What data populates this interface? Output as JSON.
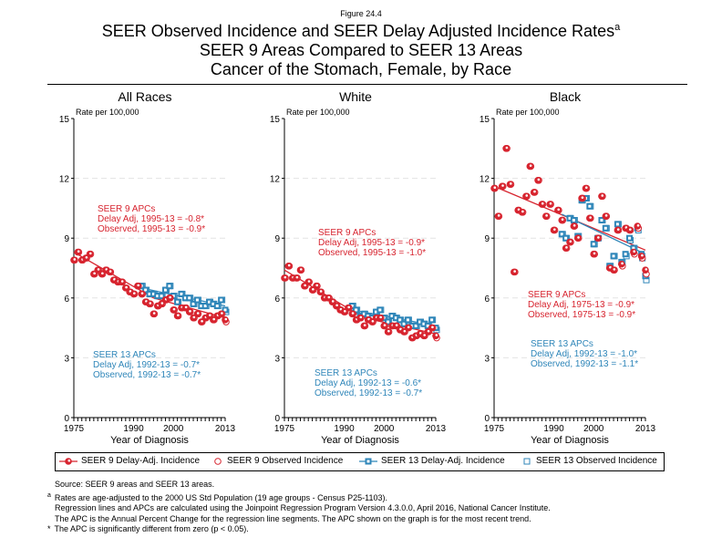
{
  "figure_label": "Figure 24.4",
  "title_line1": "SEER Observed Incidence and SEER Delay Adjusted Incidence Rates",
  "title_sup": "a",
  "title_line2": "SEER 9 Areas Compared to SEER 13 Areas",
  "title_line3": "Cancer of the Stomach, Female, by Race",
  "colors": {
    "seer9": "#d7242f",
    "seer13": "#2f86b9",
    "seer13_obs_line": "#7fb3d6"
  },
  "legend": [
    "SEER 9 Delay-Adj. Incidence",
    "SEER 9 Observed Incidence",
    "SEER 13 Delay-Adj. Incidence",
    "SEER 13 Observed Incidence"
  ],
  "notes": [
    "Source: SEER 9 areas and SEER 13 areas.",
    "Rates are age-adjusted to the 2000 US Std Population (19 age groups - Census P25-1103).",
    "Regression lines and APCs are calculated using the Joinpoint Regression Program Version 4.3.0.0, April 2016, National Cancer Institute.",
    "The APC is the Annual Percent Change for the regression line segments. The APC shown on the graph is for the most recent trend.",
    "The APC is significantly different from zero (p < 0.05)."
  ],
  "note_marks": {
    "a": "a",
    "star": "*"
  },
  "chart_data": [
    {
      "type": "scatter",
      "title": "All Races",
      "ylabel": "Rate per 100,000",
      "xlabel": "Year of Diagnosis",
      "xlim": [
        1975,
        2013
      ],
      "ylim": [
        0,
        15
      ],
      "yticks": [
        0,
        3,
        6,
        9,
        12,
        15
      ],
      "xticks": [
        1975,
        1990,
        2000,
        2013
      ],
      "grid": true,
      "seer9_apc": [
        "SEER 9 APCs",
        "Delay Adj, 1995-13 = -0.8*",
        "Observed, 1995-13 = -0.9*"
      ],
      "seer13_apc": [
        "SEER 13 APCs",
        "Delay Adj, 1992-13 = -0.7*",
        "Observed, 1992-13 = -0.7*"
      ],
      "seer9_delay": [
        7.9,
        8.3,
        7.9,
        8.0,
        8.2,
        7.2,
        7.4,
        7.2,
        7.4,
        7.3,
        6.9,
        6.8,
        6.8,
        6.5,
        6.3,
        6.2,
        6.6,
        6.2,
        5.8,
        5.7,
        5.2,
        5.6,
        5.7,
        5.9,
        6.0,
        5.4,
        5.1,
        5.5,
        5.5,
        5.3,
        5.0,
        5.2,
        4.8,
        5.0,
        5.1,
        4.9,
        5.1,
        5.2,
        4.9
      ],
      "seer9_obs": [
        7.9,
        8.3,
        7.9,
        8.0,
        8.2,
        7.2,
        7.4,
        7.2,
        7.4,
        7.3,
        6.9,
        6.8,
        6.8,
        6.5,
        6.3,
        6.2,
        6.6,
        6.2,
        5.8,
        5.7,
        5.2,
        5.6,
        5.7,
        5.9,
        6.0,
        5.4,
        5.1,
        5.5,
        5.5,
        5.3,
        5.0,
        5.2,
        4.8,
        5.0,
        5.1,
        4.9,
        5.1,
        5.2,
        4.8
      ],
      "seer13_delay": [
        6.6,
        6.4,
        6.2,
        6.2,
        6.1,
        6.1,
        6.4,
        6.6,
        6.1,
        5.8,
        6.2,
        6.0,
        6.0,
        5.7,
        5.9,
        5.6,
        5.6,
        5.8,
        5.7,
        5.6,
        5.9,
        5.4
      ],
      "seer13_obs": [
        6.6,
        6.4,
        6.2,
        6.2,
        6.1,
        6.1,
        6.4,
        6.6,
        6.1,
        5.8,
        6.2,
        6.0,
        6.0,
        5.7,
        5.9,
        5.6,
        5.6,
        5.8,
        5.7,
        5.6,
        5.9,
        5.3
      ],
      "seer9_line": [
        [
          1975,
          8.3
        ],
        [
          1995,
          6.0
        ],
        [
          2013,
          5.0
        ]
      ],
      "seer13_line": [
        [
          1992,
          6.5
        ],
        [
          2013,
          5.6
        ]
      ]
    },
    {
      "type": "scatter",
      "title": "White",
      "ylabel": "Rate per 100,000",
      "xlabel": "Year of Diagnosis",
      "xlim": [
        1975,
        2013
      ],
      "ylim": [
        0,
        15
      ],
      "yticks": [
        0,
        3,
        6,
        9,
        12,
        15
      ],
      "xticks": [
        1975,
        1990,
        2000,
        2013
      ],
      "grid": true,
      "seer9_apc": [
        "SEER 9 APCs",
        "Delay Adj, 1995-13 = -0.9*",
        "Observed, 1995-13 = -1.0*"
      ],
      "seer13_apc": [
        "SEER 13 APCs",
        "Delay Adj, 1992-13 = -0.6*",
        "Observed, 1992-13 = -0.7*"
      ],
      "seer9_delay": [
        7.0,
        7.6,
        7.0,
        7.0,
        7.4,
        6.6,
        6.8,
        6.4,
        6.6,
        6.3,
        6.0,
        6.0,
        5.8,
        5.6,
        5.4,
        5.3,
        5.5,
        5.2,
        4.9,
        5.0,
        4.6,
        4.9,
        4.8,
        5.0,
        5.0,
        4.6,
        4.3,
        4.6,
        4.6,
        4.4,
        4.3,
        4.5,
        4.0,
        4.1,
        4.2,
        4.1,
        4.3,
        4.5,
        4.1
      ],
      "seer9_obs": [
        7.0,
        7.6,
        7.0,
        7.0,
        7.4,
        6.6,
        6.8,
        6.4,
        6.6,
        6.3,
        6.0,
        6.0,
        5.8,
        5.6,
        5.4,
        5.3,
        5.5,
        5.2,
        4.9,
        5.0,
        4.6,
        4.9,
        4.8,
        5.0,
        5.0,
        4.6,
        4.3,
        4.6,
        4.6,
        4.4,
        4.3,
        4.5,
        4.0,
        4.1,
        4.2,
        4.1,
        4.3,
        4.5,
        4.0
      ],
      "seer13_delay": [
        5.6,
        5.4,
        5.1,
        5.2,
        5.1,
        5.0,
        5.3,
        5.4,
        5.0,
        4.8,
        5.1,
        5.0,
        4.9,
        4.7,
        4.9,
        4.6,
        4.6,
        4.8,
        4.7,
        4.6,
        4.9,
        4.5
      ],
      "seer13_obs": [
        5.6,
        5.4,
        5.1,
        5.2,
        5.1,
        5.0,
        5.3,
        5.4,
        5.0,
        4.8,
        5.1,
        5.0,
        4.9,
        4.7,
        4.9,
        4.6,
        4.6,
        4.8,
        4.7,
        4.6,
        4.9,
        4.4
      ],
      "seer9_line": [
        [
          1975,
          7.4
        ],
        [
          1995,
          5.0
        ],
        [
          2013,
          4.2
        ]
      ],
      "seer13_line": [
        [
          1992,
          5.4
        ],
        [
          2013,
          4.6
        ]
      ]
    },
    {
      "type": "scatter",
      "title": "Black",
      "ylabel": "Rate per 100,000",
      "xlabel": "Year of Diagnosis",
      "xlim": [
        1975,
        2013
      ],
      "ylim": [
        0,
        15
      ],
      "yticks": [
        0,
        3,
        6,
        9,
        12,
        15
      ],
      "xticks": [
        1975,
        1990,
        2000,
        2013
      ],
      "grid": true,
      "seer9_apc": [
        "SEER 9 APCs",
        "Delay Adj, 1975-13 = -0.9*",
        "Observed, 1975-13 = -0.9*"
      ],
      "seer13_apc": [
        "SEER 13 APCs",
        "Delay Adj, 1992-13 = -1.0*",
        "Observed, 1992-13 = -1.1*"
      ],
      "seer9_delay": [
        11.5,
        10.1,
        11.6,
        13.5,
        11.7,
        7.3,
        10.4,
        10.3,
        11.1,
        12.6,
        11.3,
        11.9,
        10.7,
        10.1,
        10.7,
        9.4,
        10.4,
        9.9,
        8.5,
        8.8,
        9.6,
        9.0,
        11.0,
        11.5,
        10.0,
        8.2,
        9.0,
        11.1,
        10.1,
        7.5,
        7.4,
        9.4,
        7.7,
        9.5,
        9.4,
        8.3,
        9.6,
        8.1,
        7.4
      ],
      "seer9_obs": [
        11.5,
        10.1,
        11.6,
        13.5,
        11.7,
        7.3,
        10.4,
        10.3,
        11.1,
        12.6,
        11.3,
        11.9,
        10.7,
        10.1,
        10.7,
        9.4,
        10.4,
        9.9,
        8.5,
        8.8,
        9.6,
        9.0,
        11.0,
        11.5,
        10.0,
        8.2,
        9.0,
        11.1,
        10.1,
        7.5,
        7.4,
        9.4,
        7.6,
        9.5,
        9.4,
        8.2,
        9.5,
        8.0,
        7.2
      ],
      "seer13_delay": [
        9.2,
        9.0,
        10.0,
        9.9,
        9.1,
        10.9,
        11.0,
        10.6,
        8.7,
        9.0,
        9.9,
        9.5,
        7.6,
        8.1,
        9.7,
        7.8,
        8.2,
        9.0,
        8.5,
        9.5,
        8.2,
        7.1
      ],
      "seer13_obs": [
        9.2,
        9.0,
        10.0,
        9.9,
        9.1,
        10.9,
        11.0,
        10.6,
        8.7,
        9.0,
        9.9,
        9.5,
        7.6,
        8.1,
        9.7,
        7.8,
        8.1,
        8.9,
        8.5,
        9.4,
        8.0,
        6.9
      ],
      "seer9_line": [
        [
          1975,
          11.6
        ],
        [
          2013,
          8.4
        ]
      ],
      "seer13_line": [
        [
          1992,
          10.2
        ],
        [
          2013,
          8.2
        ]
      ]
    }
  ]
}
